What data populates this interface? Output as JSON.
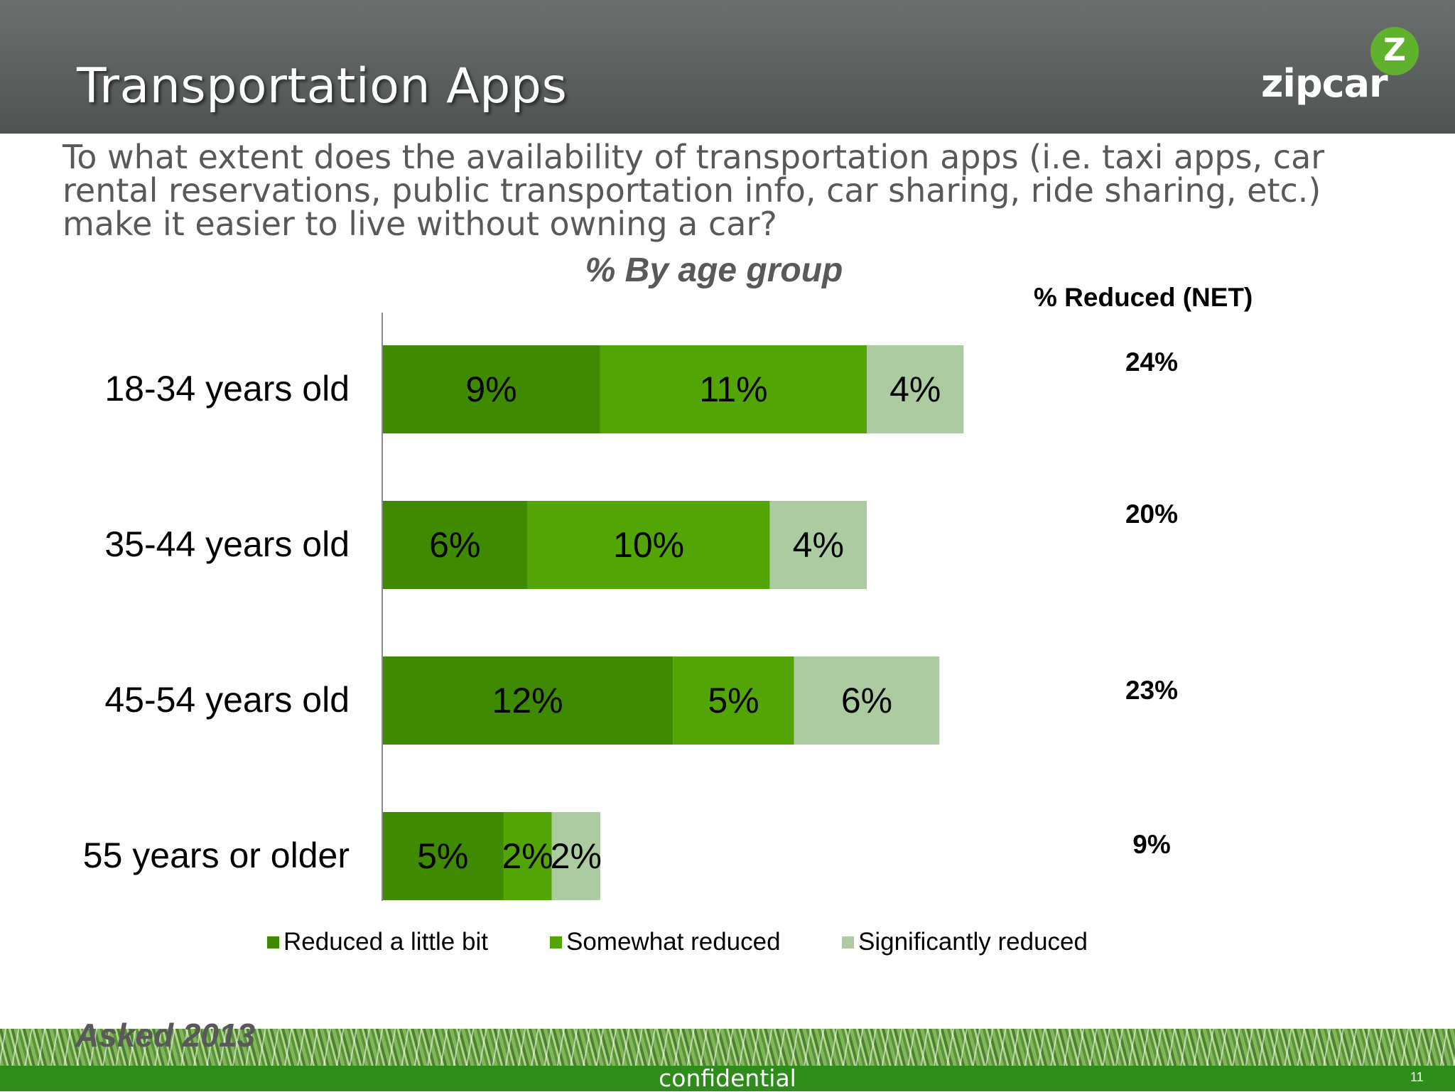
{
  "header": {
    "title": "Transportation Apps",
    "logo_text": "zipcar",
    "logo_badge": "Z"
  },
  "question": "To what extent does the availability of transportation apps (i.e. taxi apps, car rental reservations, public transportation info, car sharing, ride sharing, etc.) make it easier to live without owning a car?",
  "net": {
    "header": "% Reduced (NET)",
    "values": [
      "24%",
      "20%",
      "23%",
      "9%"
    ]
  },
  "chart_data": {
    "type": "bar",
    "orientation": "horizontal",
    "stacked": true,
    "title": "% By age group",
    "categories": [
      "18-34 years old",
      "35-44 years old",
      "45-54 years old",
      "55 years or older"
    ],
    "series": [
      {
        "name": "Reduced a little bit",
        "color": "#3f8a00",
        "values": [
          9,
          6,
          12,
          5
        ],
        "labels": [
          "9%",
          "6%",
          "12%",
          "5%"
        ]
      },
      {
        "name": "Somewhat reduced",
        "color": "#52a504",
        "values": [
          11,
          10,
          5,
          2
        ],
        "labels": [
          "11%",
          "10%",
          "5%",
          "2%"
        ]
      },
      {
        "name": "Significantly reduced",
        "color": "#adcba1",
        "values": [
          4,
          4,
          6,
          2
        ],
        "labels": [
          "4%",
          "4%",
          "6%",
          "2%"
        ]
      }
    ],
    "legend_position": "bottom",
    "grid": false
  },
  "note": "Asked 2013",
  "footer": {
    "confidential": "confidential",
    "page_number": "11"
  }
}
